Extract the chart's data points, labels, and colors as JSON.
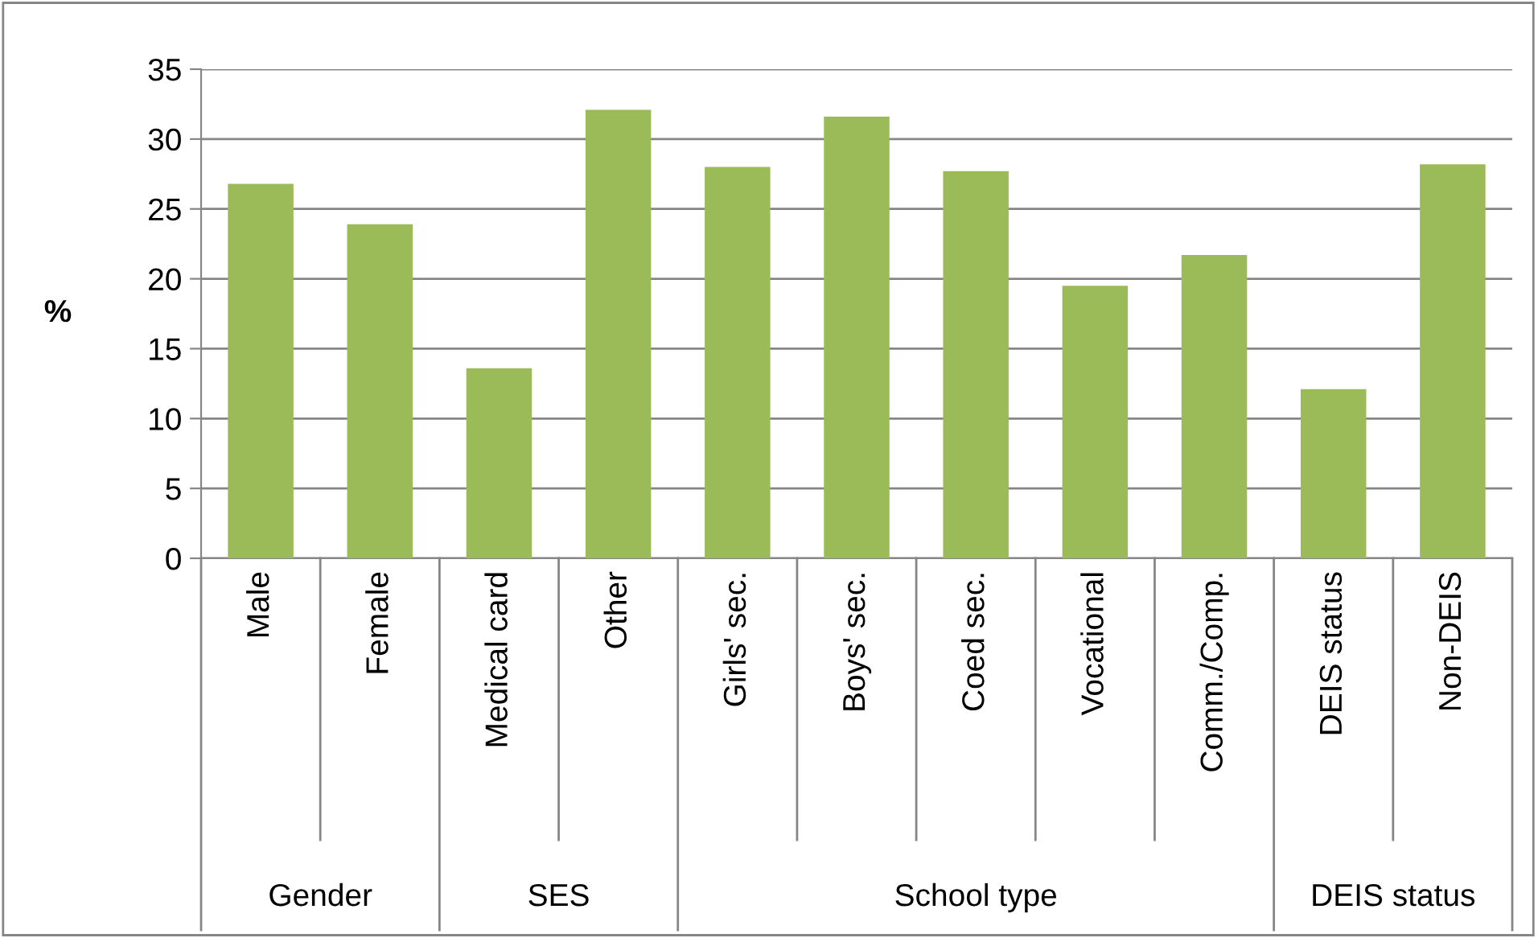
{
  "chart_data": {
    "type": "bar",
    "ylabel": "%",
    "categories": [
      "Male",
      "Female",
      "Medical card",
      "Other",
      "Girls' sec.",
      "Boys' sec.",
      "Coed sec.",
      "Vocational",
      "Comm./Comp.",
      "DEIS status",
      "Non-DEIS"
    ],
    "values": [
      26.8,
      23.9,
      13.6,
      32.1,
      28.0,
      31.6,
      27.7,
      19.5,
      21.7,
      12.1,
      28.2
    ],
    "color": "#9bbb59",
    "ylim": [
      0,
      35
    ],
    "yticks": [
      0,
      5,
      10,
      15,
      20,
      25,
      30,
      35
    ],
    "grid": "y",
    "annotations": [
      "Gender",
      "SES",
      "School type",
      "DEIS status"
    ]
  }
}
